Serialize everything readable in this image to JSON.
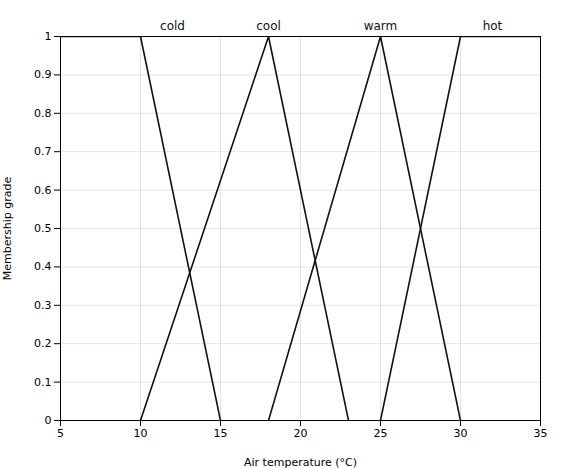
{
  "chart_data": {
    "type": "line",
    "xlabel": "Air temperature (°C)",
    "ylabel": "Membership grade",
    "xlim": [
      5,
      35
    ],
    "ylim": [
      0,
      1
    ],
    "xticks": [
      5,
      10,
      15,
      20,
      25,
      30,
      35
    ],
    "yticks": [
      0,
      0.1,
      0.2,
      0.3,
      0.4,
      0.5,
      0.6,
      0.7,
      0.8,
      0.9,
      1
    ],
    "grid": true,
    "color": "#111111",
    "series": [
      {
        "name": "cold",
        "label_x": 12,
        "x": [
          5,
          10,
          15
        ],
        "values": [
          1,
          1,
          0
        ]
      },
      {
        "name": "cool",
        "label_x": 18,
        "x": [
          10,
          18,
          23
        ],
        "values": [
          0,
          1,
          0
        ]
      },
      {
        "name": "warm",
        "label_x": 25,
        "x": [
          18,
          25,
          30
        ],
        "values": [
          0,
          1,
          0
        ]
      },
      {
        "name": "hot",
        "label_x": 32,
        "x": [
          25,
          30,
          35
        ],
        "values": [
          0,
          1,
          1
        ]
      }
    ]
  }
}
